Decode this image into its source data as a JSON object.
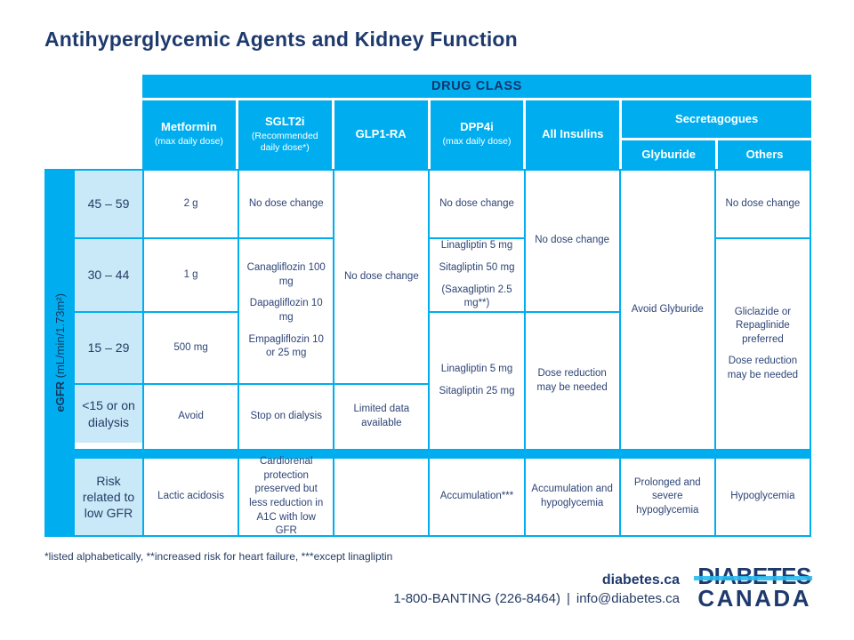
{
  "title": "Antihyperglycemic Agents and Kidney Function",
  "colors": {
    "brand_cyan": "#00AEEF",
    "brand_navy": "#1E3A6D",
    "row_label_blue": "#C9E8F8",
    "cell_text_blue": "#2E4476"
  },
  "header": {
    "drug_class": "DRUG CLASS",
    "columns": [
      {
        "label": "Metformin",
        "sub": "(max daily dose)"
      },
      {
        "label": "SGLT2i",
        "sub": "(Recommended daily dose*)"
      },
      {
        "label": "GLP1-RA",
        "sub": ""
      },
      {
        "label": "DPP4i",
        "sub": "(max daily dose)"
      },
      {
        "label": "All Insulins",
        "sub": ""
      },
      {
        "label": "Secretagogues",
        "sub": ""
      }
    ],
    "secretagogues_split": {
      "glyburide": "Glyburide",
      "others": "Others"
    }
  },
  "axis": {
    "egfr_bold": "eGFR",
    "egfr_units": " (mL/min/1.73m²)"
  },
  "row_labels": [
    "45 – 59",
    "30 – 44",
    "15 – 29",
    "<15 or on dialysis",
    "Risk related to low GFR"
  ],
  "cells": {
    "metformin": {
      "r45_59": "2 g",
      "r30_44": "1 g",
      "r15_29": "500 mg",
      "lt15": "Avoid",
      "risk": "Lactic acidosis"
    },
    "sglt2i": {
      "r45_59": "No dose change",
      "r30_to_29_list": [
        "Canagliflozin 100 mg",
        "Dapagliflozin 10 mg",
        "Empagliflozin 10 or 25 mg"
      ],
      "lt15": "Stop on dialysis",
      "risk": "Cardiorenal protection preserved but less reduction in A1C with low GFR"
    },
    "glp1ra": {
      "r45_to_29": "No dose change",
      "lt15": "Limited data available",
      "risk": ""
    },
    "dpp4i": {
      "r45_59": "No dose change",
      "r30_44_list": [
        "Linagliptin 5 mg",
        "Sitagliptin 50 mg",
        "(Saxagliptin 2.5 mg**)"
      ],
      "r15_to_lt15_list": [
        "Linagliptin 5 mg",
        "Sitagliptin 25 mg"
      ],
      "risk": "Accumulation***"
    },
    "all_insulins": {
      "r45_to_44": "No dose change",
      "r15_to_lt15": "Dose reduction may be needed",
      "risk": "Accumulation and hypoglycemia"
    },
    "glyburide": {
      "r45_to_lt15": "Avoid Glyburide",
      "risk": "Prolonged and severe hypoglycemia"
    },
    "others": {
      "r45_59": "No dose change",
      "r30_to_lt15_list": [
        "Gliclazide or Repaglinide preferred",
        "Dose reduction may be needed"
      ],
      "risk": "Hypoglycemia"
    }
  },
  "footnote": "*listed alphabetically, **increased risk for heart failure, ***except linagliptin",
  "footer": {
    "website": "diabetes.ca",
    "phone": "1-800-BANTING (226-8464)",
    "pipe": "|",
    "email": "info@diabetes.ca",
    "logo_line1": "DIABETES",
    "logo_line2": "CANADA"
  }
}
